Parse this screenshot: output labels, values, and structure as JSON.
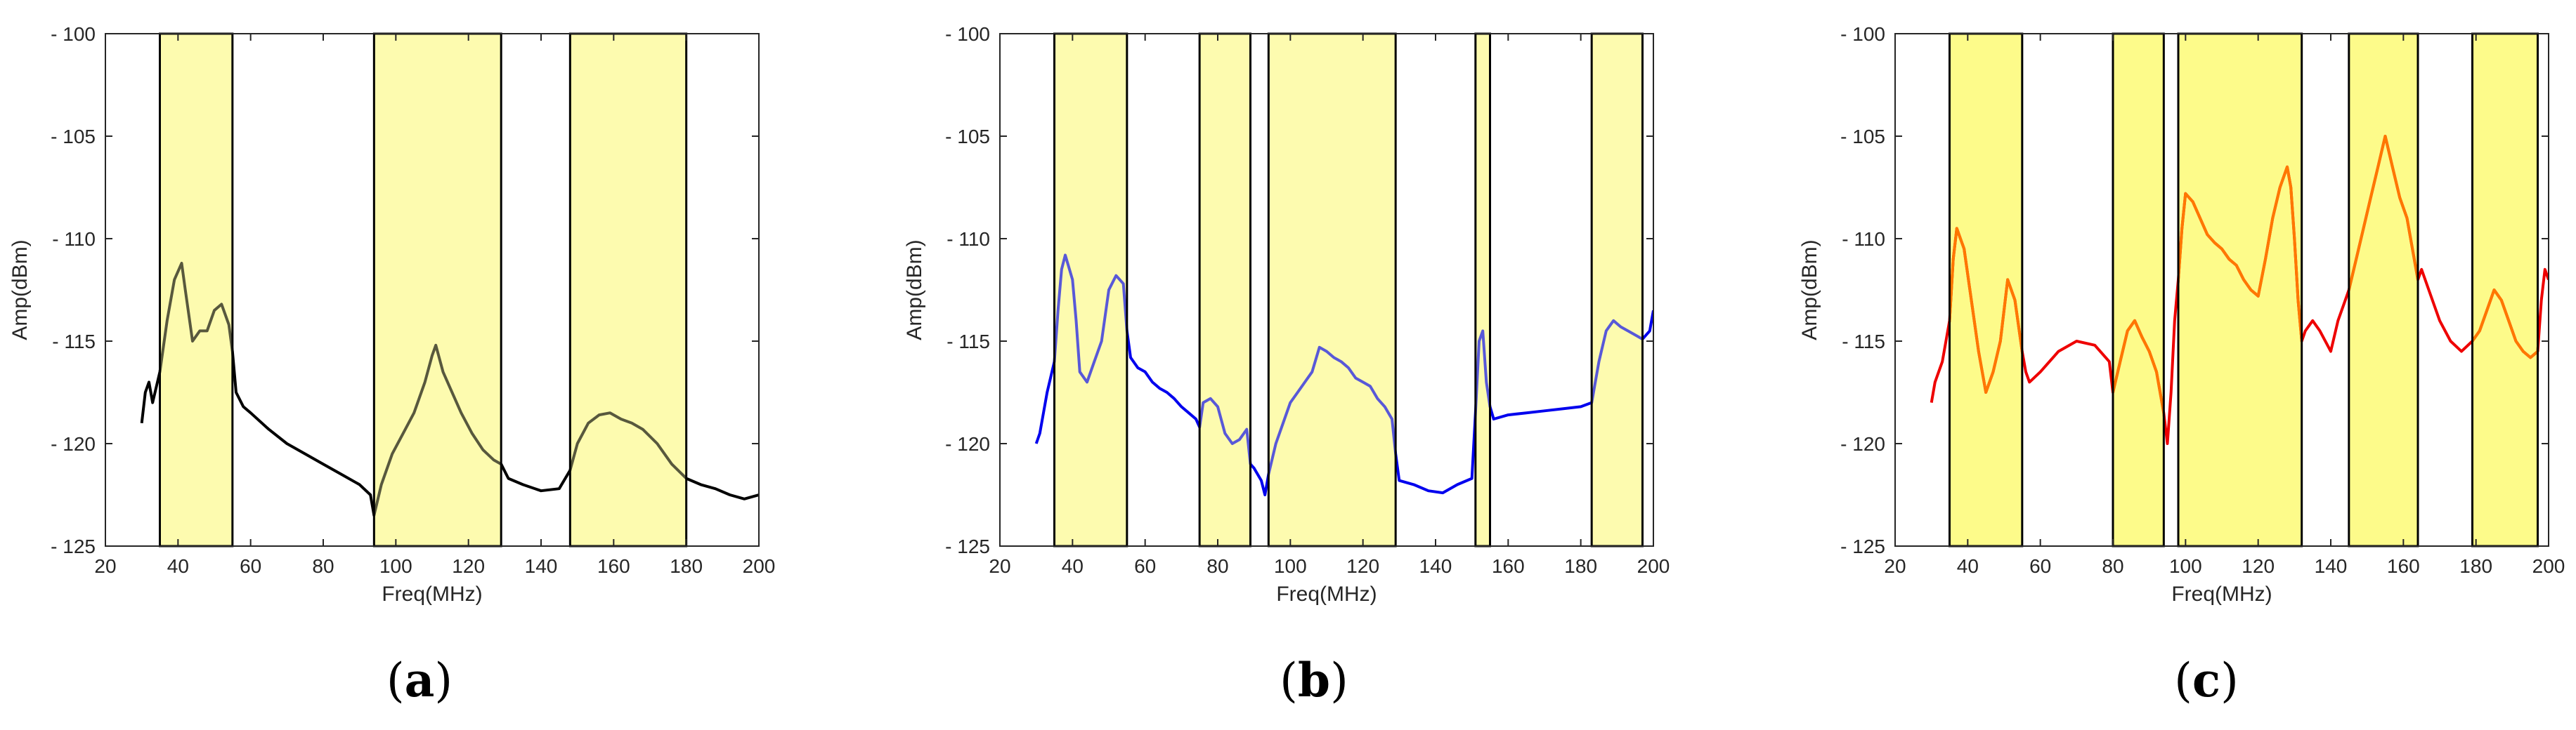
{
  "figure": {
    "captions": [
      "a",
      "b",
      "c"
    ]
  },
  "chart_data": [
    {
      "type": "line",
      "panel": "a",
      "xlabel": "Freq(MHz)",
      "ylabel": "Amp(dBm)",
      "xlim": [
        20,
        200
      ],
      "ylim": [
        -125,
        -100
      ],
      "xticks": [
        20,
        40,
        60,
        80,
        100,
        120,
        140,
        160,
        180,
        200
      ],
      "yticks": [
        -125,
        -120,
        -115,
        -110,
        -105,
        -100
      ],
      "grid": false,
      "line_color": "#000000",
      "band_color": "#fdfbb0",
      "highlight_bands": [
        [
          35,
          55
        ],
        [
          94,
          129
        ],
        [
          148,
          180
        ]
      ],
      "series": [
        {
          "x": [
            30,
            31,
            32,
            33,
            35,
            37,
            39,
            41,
            42,
            44,
            46,
            48,
            50,
            52,
            54,
            55,
            56,
            58,
            60,
            65,
            70,
            75,
            80,
            85,
            90,
            93,
            94,
            96,
            99,
            102,
            105,
            108,
            110,
            111,
            113,
            115,
            118,
            121,
            124,
            127,
            129,
            131,
            135,
            140,
            145,
            148,
            150,
            153,
            156,
            159,
            162,
            165,
            168,
            172,
            176,
            180,
            184,
            188,
            192,
            196,
            200
          ],
          "y": [
            -119,
            -117.5,
            -117,
            -118,
            -116.5,
            -114,
            -112,
            -111.2,
            -112.5,
            -115,
            -114.5,
            -114.5,
            -113.5,
            -113.2,
            -114.2,
            -115.5,
            -117.5,
            -118.2,
            -118.5,
            -119.3,
            -120,
            -120.5,
            -121,
            -121.5,
            -122,
            -122.5,
            -123.5,
            -122,
            -120.5,
            -119.5,
            -118.5,
            -117,
            -115.7,
            -115.2,
            -116.5,
            -117.3,
            -118.5,
            -119.5,
            -120.3,
            -120.8,
            -121,
            -121.7,
            -122,
            -122.3,
            -122.2,
            -121.3,
            -120,
            -119,
            -118.6,
            -118.5,
            -118.8,
            -119,
            -119.3,
            -120,
            -121,
            -121.7,
            -122,
            -122.2,
            -122.5,
            -122.7,
            -122.5
          ]
        }
      ]
    },
    {
      "type": "line",
      "panel": "b",
      "xlabel": "Freq(MHz)",
      "ylabel": "Amp(dBm)",
      "xlim": [
        20,
        200
      ],
      "ylim": [
        -125,
        -100
      ],
      "xticks": [
        20,
        40,
        60,
        80,
        100,
        120,
        140,
        160,
        180,
        200
      ],
      "yticks": [
        -125,
        -120,
        -115,
        -110,
        -105,
        -100
      ],
      "grid": false,
      "line_color": "#0000ee",
      "band_color": "#fdfbb0",
      "highlight_bands": [
        [
          35,
          55
        ],
        [
          75,
          89
        ],
        [
          94,
          129
        ],
        [
          151,
          155
        ],
        [
          183,
          197
        ]
      ],
      "series": [
        {
          "x": [
            30,
            31,
            32,
            33,
            35,
            36,
            37,
            38,
            40,
            41,
            42,
            44,
            46,
            48,
            50,
            52,
            54,
            55,
            56,
            58,
            60,
            62,
            64,
            66,
            68,
            70,
            72,
            74,
            75,
            76,
            78,
            80,
            82,
            84,
            86,
            88,
            89,
            90,
            92,
            93,
            94,
            96,
            98,
            100,
            102,
            104,
            106,
            108,
            110,
            112,
            114,
            116,
            118,
            120,
            122,
            124,
            126,
            128,
            129,
            130,
            134,
            138,
            142,
            146,
            150,
            151,
            152,
            153,
            154,
            155,
            156,
            160,
            165,
            170,
            175,
            180,
            183,
            185,
            187,
            189,
            191,
            193,
            195,
            197,
            199,
            200
          ],
          "y": [
            -120,
            -119.5,
            -118.5,
            -117.5,
            -116,
            -113.5,
            -111.5,
            -110.8,
            -112,
            -114,
            -116.5,
            -117,
            -116,
            -115,
            -112.5,
            -111.8,
            -112.2,
            -114.5,
            -115.8,
            -116.3,
            -116.5,
            -117,
            -117.3,
            -117.5,
            -117.8,
            -118.2,
            -118.5,
            -118.8,
            -119.2,
            -118,
            -117.8,
            -118.2,
            -119.5,
            -120,
            -119.8,
            -119.3,
            -121,
            -121.2,
            -121.8,
            -122.5,
            -121.5,
            -120,
            -119,
            -118,
            -117.5,
            -117,
            -116.5,
            -115.3,
            -115.5,
            -115.8,
            -116,
            -116.3,
            -116.8,
            -117,
            -117.2,
            -117.8,
            -118.2,
            -118.8,
            -120.5,
            -121.8,
            -122,
            -122.3,
            -122.4,
            -122,
            -121.7,
            -118.5,
            -115,
            -114.5,
            -117,
            -118.2,
            -118.8,
            -118.6,
            -118.5,
            -118.4,
            -118.3,
            -118.2,
            -118,
            -116,
            -114.5,
            -114,
            -114.3,
            -114.5,
            -114.7,
            -114.9,
            -114.5,
            -113.5
          ]
        }
      ]
    },
    {
      "type": "line",
      "panel": "c",
      "xlabel": "Freq(MHz)",
      "ylabel": "Amp(dBm)",
      "xlim": [
        20,
        200
      ],
      "ylim": [
        -125,
        -100
      ],
      "xticks": [
        20,
        40,
        60,
        80,
        100,
        120,
        140,
        160,
        180,
        200
      ],
      "yticks": [
        -125,
        -120,
        -115,
        -110,
        -105,
        -100
      ],
      "grid": false,
      "line_color": "#ee0000",
      "band_color": "#fdfb8a",
      "band_line_color": "#ff7700",
      "highlight_bands": [
        [
          35,
          55
        ],
        [
          80,
          94
        ],
        [
          98,
          132
        ],
        [
          145,
          164
        ],
        [
          179,
          197
        ]
      ],
      "series": [
        {
          "x": [
            30,
            31,
            32,
            33,
            35,
            36,
            37,
            39,
            41,
            43,
            45,
            47,
            49,
            50,
            51,
            53,
            55,
            56,
            57,
            60,
            65,
            70,
            75,
            79,
            80,
            82,
            84,
            86,
            88,
            90,
            92,
            94,
            95,
            96,
            97,
            98,
            99,
            100,
            102,
            104,
            106,
            108,
            110,
            112,
            114,
            116,
            118,
            120,
            122,
            124,
            126,
            128,
            129,
            130,
            131,
            132,
            133,
            135,
            137,
            140,
            142,
            144,
            145,
            147,
            149,
            151,
            153,
            155,
            157,
            159,
            161,
            163,
            164,
            165,
            167,
            170,
            173,
            176,
            179,
            181,
            183,
            185,
            187,
            189,
            191,
            193,
            195,
            197,
            198,
            199,
            200
          ],
          "y": [
            -118,
            -117,
            -116.5,
            -116,
            -114,
            -111,
            -109.5,
            -110.5,
            -113,
            -115.5,
            -117.5,
            -116.5,
            -115,
            -113.5,
            -112,
            -113,
            -115.5,
            -116.5,
            -117,
            -116.5,
            -115.5,
            -115,
            -115.2,
            -116,
            -117.5,
            -116,
            -114.5,
            -114,
            -114.8,
            -115.5,
            -116.5,
            -118.5,
            -120,
            -117.5,
            -114,
            -112,
            -109.5,
            -107.8,
            -108.2,
            -109,
            -109.8,
            -110.2,
            -110.5,
            -111,
            -111.3,
            -112,
            -112.5,
            -112.8,
            -111,
            -109,
            -107.5,
            -106.5,
            -107.5,
            -110,
            -113,
            -115,
            -114.5,
            -114,
            -114.5,
            -115.5,
            -114,
            -113,
            -112.5,
            -111,
            -109.5,
            -108,
            -106.5,
            -105,
            -106.5,
            -108,
            -109,
            -111,
            -112,
            -111.5,
            -112.5,
            -114,
            -115,
            -115.5,
            -115,
            -114.5,
            -113.5,
            -112.5,
            -113,
            -114,
            -115,
            -115.5,
            -115.8,
            -115.5,
            -113,
            -111.5,
            -112
          ]
        }
      ]
    }
  ]
}
